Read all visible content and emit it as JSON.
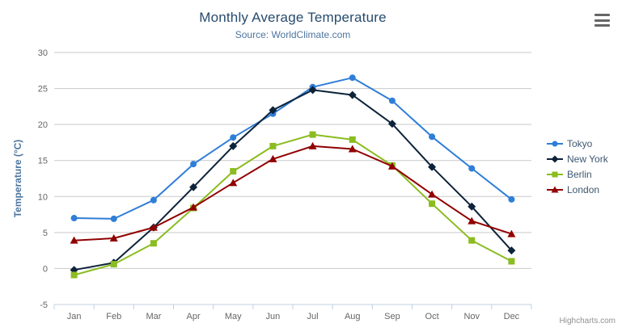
{
  "chart_data": {
    "type": "line",
    "title": "Monthly Average Temperature",
    "subtitle": "Source: WorldClimate.com",
    "xlabel": "",
    "ylabel": "Temperature (°C)",
    "ylim": [
      -5,
      30
    ],
    "ytick_step": 5,
    "grid": true,
    "legend_position": "right",
    "credits": "Highcharts.com",
    "categories": [
      "Jan",
      "Feb",
      "Mar",
      "Apr",
      "May",
      "Jun",
      "Jul",
      "Aug",
      "Sep",
      "Oct",
      "Nov",
      "Dec"
    ],
    "series": [
      {
        "name": "Tokyo",
        "color": "#2f7ed8",
        "marker": "circle",
        "values": [
          7.0,
          6.9,
          9.5,
          14.5,
          18.2,
          21.5,
          25.2,
          26.5,
          23.3,
          18.3,
          13.9,
          9.6
        ]
      },
      {
        "name": "New York",
        "color": "#0d233a",
        "marker": "diamond",
        "values": [
          -0.2,
          0.8,
          5.7,
          11.3,
          17.0,
          22.0,
          24.8,
          24.1,
          20.1,
          14.1,
          8.6,
          2.5
        ]
      },
      {
        "name": "Berlin",
        "color": "#8bbc21",
        "marker": "square",
        "values": [
          -0.9,
          0.6,
          3.5,
          8.4,
          13.5,
          17.0,
          18.6,
          17.9,
          14.3,
          9.0,
          3.9,
          1.0
        ]
      },
      {
        "name": "London",
        "color": "#910000",
        "marker": "triangle",
        "values": [
          3.9,
          4.2,
          5.7,
          8.5,
          11.9,
          15.2,
          17.0,
          16.6,
          14.2,
          10.3,
          6.6,
          4.8
        ]
      }
    ]
  },
  "colors": {
    "title_text": "#274b6d",
    "subtitle_text": "#4d759e",
    "axis_title_text": "#4d759e",
    "axis_label_text": "#666666",
    "legend_text": "#3e576f",
    "grid_line": "#c9c9c9",
    "axis_line": "#c0d0e0",
    "burger_icon": "#666666",
    "credits_text": "#909090"
  },
  "controls": {
    "export_menu_icon": "hamburger"
  }
}
